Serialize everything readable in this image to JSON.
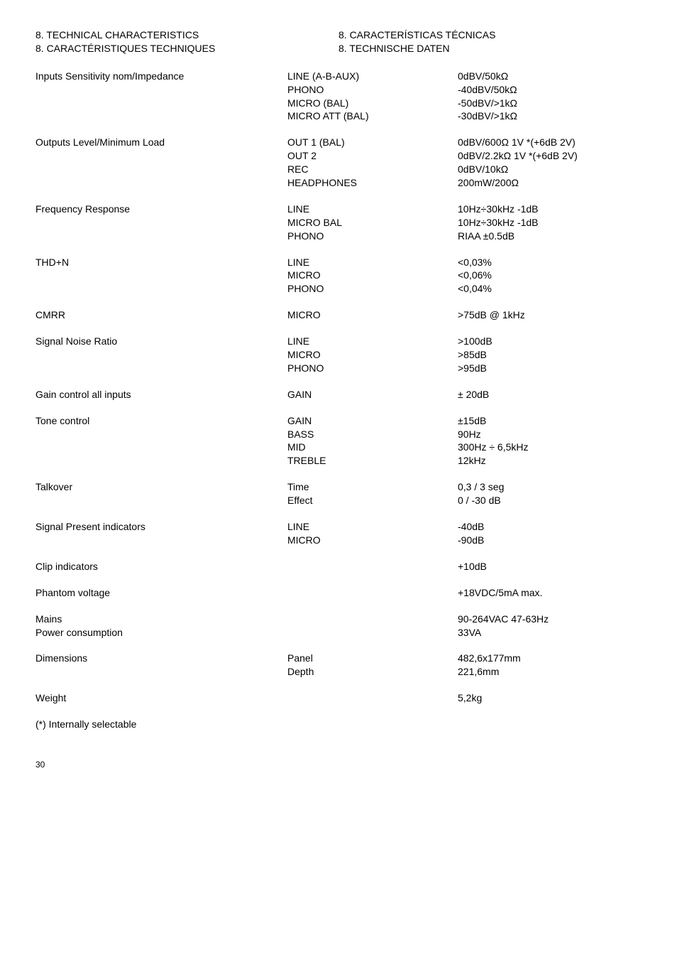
{
  "header": {
    "left_line1": "8. TECHNICAL CHARACTERISTICS",
    "left_line2": "8. CARACTÉRISTIQUES TECHNIQUES",
    "right_line1": "8. CARACTERÍSTICAS TÉCNICAS",
    "right_line2": "8. TECHNISCHE DATEN"
  },
  "rows": [
    {
      "label": "Inputs Sensitivity nom/Impedance",
      "mid": [
        "LINE (A-B-AUX)",
        "PHONO",
        "MICRO (BAL)",
        "MICRO ATT (BAL)"
      ],
      "val": [
        "0dBV/50kΩ",
        "-40dBV/50kΩ",
        "-50dBV/>1kΩ",
        "-30dBV/>1kΩ"
      ]
    },
    {
      "label": "Outputs Level/Minimum Load",
      "mid": [
        "OUT 1 (BAL)",
        "OUT 2",
        "REC",
        "HEADPHONES"
      ],
      "val": [
        "0dBV/600Ω 1V *(+6dB 2V)",
        "0dBV/2.2kΩ 1V *(+6dB 2V)",
        "0dBV/10kΩ",
        "200mW/200Ω"
      ]
    },
    {
      "label": "Frequency Response",
      "mid": [
        "LINE",
        "MICRO BAL",
        "PHONO"
      ],
      "val": [
        "10Hz÷30kHz -1dB",
        "10Hz÷30kHz -1dB",
        "RIAA ±0.5dB"
      ]
    },
    {
      "label": "THD+N",
      "mid": [
        "LINE",
        "MICRO",
        "PHONO"
      ],
      "val": [
        "<0,03%",
        "<0,06%",
        "<0,04%"
      ]
    },
    {
      "label": "CMRR",
      "mid": [
        "MICRO"
      ],
      "val": [
        ">75dB @ 1kHz"
      ]
    },
    {
      "label": "Signal Noise Ratio",
      "mid": [
        "LINE",
        "MICRO",
        "PHONO"
      ],
      "val": [
        ">100dB",
        ">85dB",
        ">95dB"
      ]
    },
    {
      "label": "Gain control all inputs",
      "mid": [
        "GAIN"
      ],
      "val": [
        "± 20dB"
      ]
    },
    {
      "label": "Tone control",
      "mid": [
        "GAIN",
        "BASS",
        "MID",
        "TREBLE"
      ],
      "val": [
        "±15dB",
        "90Hz",
        "300Hz ÷ 6,5kHz",
        "12kHz"
      ]
    },
    {
      "label": "Talkover",
      "mid": [
        "Time",
        "Effect"
      ],
      "val": [
        "0,3 / 3 seg",
        "0 / -30 dB"
      ]
    },
    {
      "label": "Signal Present indicators",
      "mid": [
        "LINE",
        "MICRO"
      ],
      "val": [
        "-40dB",
        "-90dB"
      ]
    },
    {
      "label": "Clip indicators",
      "mid": [],
      "val": [
        "+10dB"
      ]
    },
    {
      "label": "Phantom voltage",
      "mid": [],
      "val": [
        "+18VDC/5mA max."
      ]
    },
    {
      "label_lines": [
        "Mains",
        "Power consumption"
      ],
      "mid": [],
      "val": [
        "90-264VAC 47-63Hz",
        "33VA"
      ]
    },
    {
      "label": "Dimensions",
      "mid": [
        "Panel",
        "Depth"
      ],
      "val": [
        "482,6x177mm",
        "221,6mm"
      ]
    },
    {
      "label": "Weight",
      "mid": [],
      "val": [
        "5,2kg"
      ]
    }
  ],
  "footnote": "(*) Internally selectable",
  "page": "30"
}
